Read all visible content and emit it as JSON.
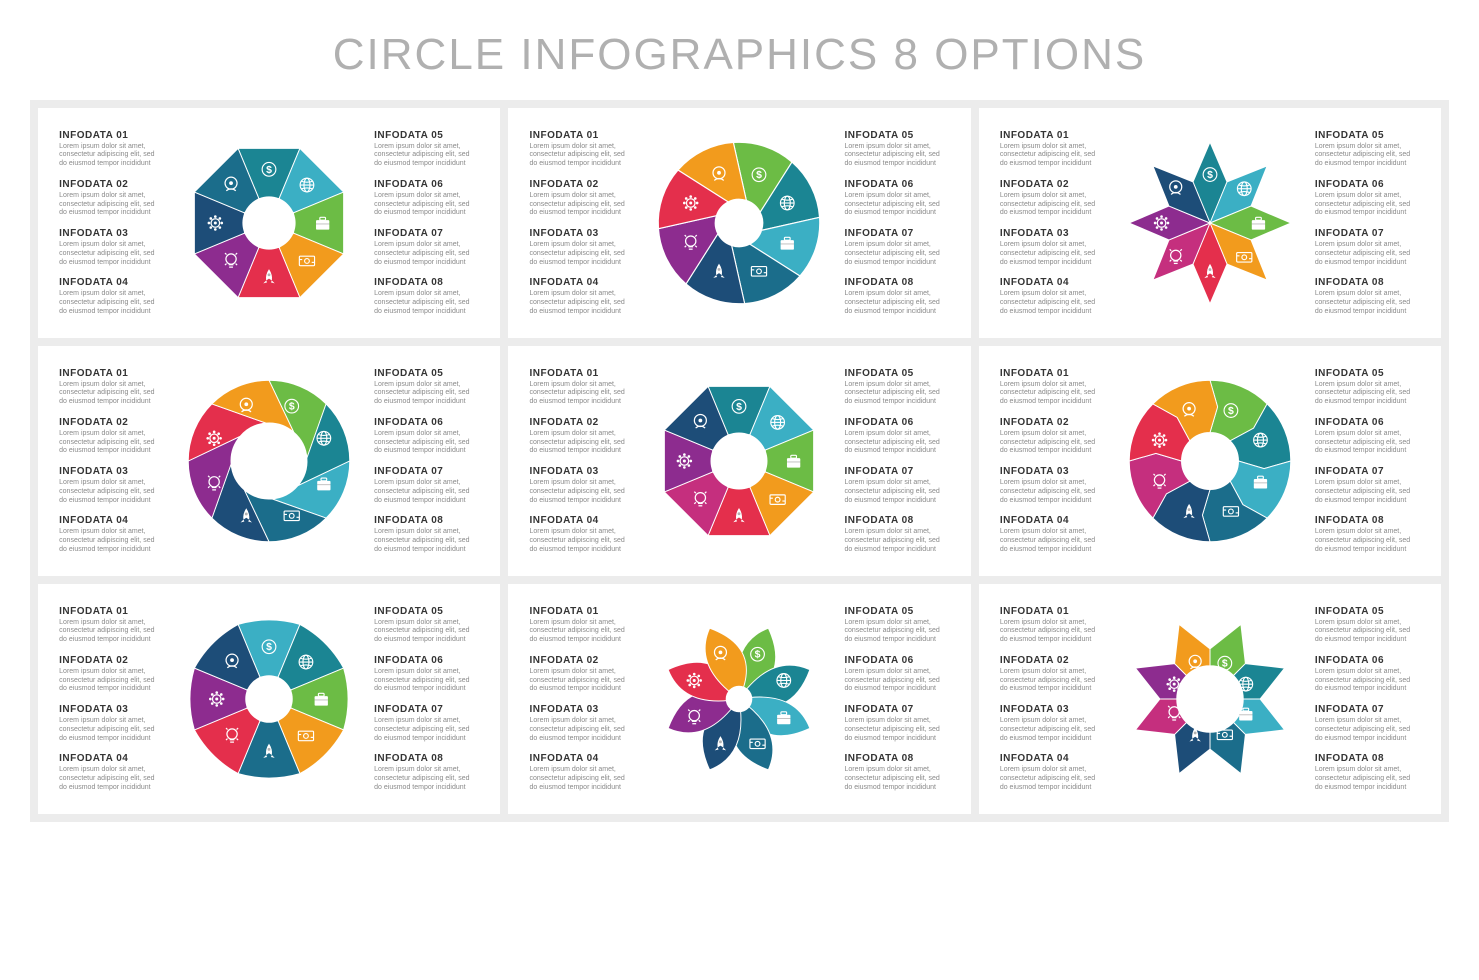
{
  "title": "CIRCLE INFOGRAPHICS 8 OPTIONS",
  "page_bg": "#ffffff",
  "grid_bg": "#ececec",
  "text_heading_color": "#343434",
  "text_body_color": "#8a8a8a",
  "title_color": "#b0b0b0",
  "title_fontsize": 44,
  "heading_fontsize": 10,
  "body_fontsize": 7,
  "segment_count": 8,
  "icons": [
    "dollar-icon",
    "head-icon",
    "gear-icon",
    "bulb-icon",
    "rocket-icon",
    "money-icon",
    "briefcase-icon",
    "globe-icon"
  ],
  "icon_glyphs": [
    "$",
    "☺",
    "⚙",
    "☼",
    "▲",
    "▭",
    "▣",
    "●"
  ],
  "labels": [
    {
      "h": "INFODATA 01",
      "b": "Lorem ipsum dolor sit amet, consectetur adipiscing elit, sed do eiusmod tempor incididunt"
    },
    {
      "h": "INFODATA 02",
      "b": "Lorem ipsum dolor sit amet, consectetur adipiscing elit, sed do eiusmod tempor incididunt"
    },
    {
      "h": "INFODATA 03",
      "b": "Lorem ipsum dolor sit amet, consectetur adipiscing elit, sed do eiusmod tempor incididunt"
    },
    {
      "h": "INFODATA 04",
      "b": "Lorem ipsum dolor sit amet, consectetur adipiscing elit, sed do eiusmod tempor incididunt"
    },
    {
      "h": "INFODATA 05",
      "b": "Lorem ipsum dolor sit amet, consectetur adipiscing elit, sed do eiusmod tempor incididunt"
    },
    {
      "h": "INFODATA 06",
      "b": "Lorem ipsum dolor sit amet, consectetur adipiscing elit, sed do eiusmod tempor incididunt"
    },
    {
      "h": "INFODATA 07",
      "b": "Lorem ipsum dolor sit amet, consectetur adipiscing elit, sed do eiusmod tempor incididunt"
    },
    {
      "h": "INFODATA 08",
      "b": "Lorem ipsum dolor sit amet, consectetur adipiscing elit, sed do eiusmod tempor incididunt"
    }
  ],
  "diagrams": [
    {
      "type": "flat-octagon",
      "inner_hole": 28,
      "colors": [
        "#1b8593",
        "#3bafc4",
        "#6cbc45",
        "#f29b1d",
        "#e42f4c",
        "#8d2c8f",
        "#1d4d78",
        "#1b6d8b"
      ],
      "color_order_start_angle": -112.5
    },
    {
      "type": "shutter-donut",
      "inner_hole": 25,
      "colors": [
        "#6cbc45",
        "#1b8593",
        "#3bafc4",
        "#1b6d8b",
        "#1d4d78",
        "#8d2c8f",
        "#e42f4c",
        "#f29b1d"
      ],
      "color_order_start_angle": -90
    },
    {
      "type": "pinwheel-pointed",
      "inner_hole": 0,
      "colors": [
        "#1b8593",
        "#3bafc4",
        "#6cbc45",
        "#f29b1d",
        "#e42f4c",
        "#c52f7e",
        "#8d2c8f",
        "#1d4d78"
      ],
      "color_order_start_angle": -112.5
    },
    {
      "type": "spiral-donut",
      "inner_hole": 40,
      "colors": [
        "#6cbc45",
        "#1b8593",
        "#3bafc4",
        "#1b6d8b",
        "#1d4d78",
        "#8d2c8f",
        "#e42f4c",
        "#f29b1d"
      ],
      "color_order_start_angle": -90
    },
    {
      "type": "octagon-donut",
      "inner_hole": 30,
      "colors": [
        "#1b8593",
        "#3bafc4",
        "#6cbc45",
        "#f29b1d",
        "#e42f4c",
        "#c52f7e",
        "#8d2c8f",
        "#1d4d78"
      ],
      "color_order_start_angle": -112.5
    },
    {
      "type": "arrow-donut",
      "inner_hole": 30,
      "colors": [
        "#6cbc45",
        "#1b8593",
        "#3bafc4",
        "#1b6d8b",
        "#1d4d78",
        "#c52f7e",
        "#e42f4c",
        "#f29b1d"
      ],
      "color_order_start_angle": -90
    },
    {
      "type": "rounded-octagon",
      "inner_hole": 25,
      "colors": [
        "#3bafc4",
        "#1b8593",
        "#6cbc45",
        "#f29b1d",
        "#1b6d8b",
        "#e42f4c",
        "#8d2c8f",
        "#1d4d78"
      ],
      "color_order_start_angle": -112.5
    },
    {
      "type": "petal-swirl",
      "inner_hole": 0,
      "colors": [
        "#6cbc45",
        "#1b8593",
        "#3bafc4",
        "#1b6d8b",
        "#1d4d78",
        "#8d2c8f",
        "#e42f4c",
        "#f29b1d"
      ],
      "color_order_start_angle": -90
    },
    {
      "type": "star-8",
      "inner_hole": 35,
      "colors": [
        "#6cbc45",
        "#1b8593",
        "#3bafc4",
        "#1b6d8b",
        "#1d4d78",
        "#c52f7e",
        "#8d2c8f",
        "#f29b1d"
      ],
      "color_order_start_angle": -90
    }
  ]
}
